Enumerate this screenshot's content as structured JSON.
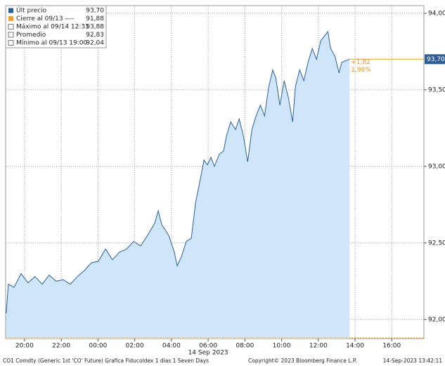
{
  "chart_data": {
    "type": "area",
    "x": [
      19.0,
      19.12,
      19.43,
      19.81,
      20.19,
      20.57,
      20.96,
      21.34,
      21.72,
      22.11,
      22.49,
      22.87,
      23.26,
      23.64,
      24.02,
      24.41,
      24.79,
      25.17,
      25.56,
      25.94,
      26.32,
      26.7,
      27.09,
      27.28,
      27.47,
      27.85,
      28.16,
      28.31,
      28.54,
      28.81,
      29.08,
      29.31,
      29.58,
      29.77,
      29.96,
      30.15,
      30.34,
      30.61,
      30.84,
      31.0,
      31.23,
      31.49,
      31.69,
      31.92,
      32.15,
      32.38,
      32.61,
      32.84,
      33.07,
      33.3,
      33.52,
      33.68,
      33.91,
      34.14,
      34.37,
      34.6,
      34.75,
      34.98,
      35.21,
      35.44,
      35.67,
      35.9,
      36.13,
      36.52,
      36.67,
      36.9,
      37.13,
      37.28,
      37.7
    ],
    "series": [
      {
        "color": "#2f5f96",
        "fill": "#cfe6fa",
        "values": [
          92.04,
          92.23,
          92.21,
          92.3,
          92.24,
          92.28,
          92.23,
          92.29,
          92.25,
          92.26,
          92.23,
          92.28,
          92.32,
          92.37,
          92.38,
          92.46,
          92.39,
          92.44,
          92.46,
          92.51,
          92.48,
          92.55,
          92.63,
          92.71,
          92.62,
          92.55,
          92.44,
          92.35,
          92.41,
          92.51,
          92.53,
          92.76,
          92.92,
          93.04,
          93.01,
          93.06,
          93.0,
          93.08,
          93.1,
          93.2,
          93.29,
          93.24,
          93.31,
          93.2,
          93.03,
          93.24,
          93.33,
          93.4,
          93.33,
          93.52,
          93.63,
          93.58,
          93.4,
          93.56,
          93.45,
          93.29,
          93.52,
          93.63,
          93.56,
          93.68,
          93.77,
          93.7,
          93.82,
          93.88,
          93.77,
          93.72,
          93.61,
          93.68,
          93.7
        ]
      }
    ],
    "xlim": [
      18.97,
      41.75
    ],
    "xticks": [
      {
        "value": 20,
        "label": "20:00"
      },
      {
        "value": 22,
        "label": "22:00"
      },
      {
        "value": 24,
        "label": "00:00"
      },
      {
        "value": 26,
        "label": "02:00"
      },
      {
        "value": 28,
        "label": "04:00"
      },
      {
        "value": 30,
        "label": "06:00"
      },
      {
        "value": 32,
        "label": "08:00"
      },
      {
        "value": 34,
        "label": "10:00"
      },
      {
        "value": 36,
        "label": "12:00"
      },
      {
        "value": 38,
        "label": "14:00"
      },
      {
        "value": 40,
        "label": "16:00"
      }
    ],
    "x_date_label": "14 Sep 2023",
    "ylim": [
      91.875,
      94.05
    ],
    "yticks": [
      {
        "value": 92,
        "label": "92,00"
      },
      {
        "value": 92.5,
        "label": "92,50"
      },
      {
        "value": 93,
        "label": "93,00"
      },
      {
        "value": 93.5,
        "label": "93,50"
      },
      {
        "value": 94,
        "label": "94,00"
      }
    ],
    "grid": true,
    "legend": {
      "names": [
        "Últ precio",
        "Cierre al 09/13 ----",
        "Máximo al 09/14 12:31",
        "Promedio",
        "Mínimo al 09/13 19:00"
      ],
      "values": [
        93.7,
        91.88,
        93.88,
        92.83,
        92.04
      ],
      "value_labels": [
        "93,70",
        "91,88",
        "93,88",
        "92,83",
        "92,04"
      ],
      "colors": [
        "#2f5f96",
        "#f0a030",
        "#777777",
        "#777777",
        "#777777"
      ]
    },
    "annotations": [
      "+1,82",
      "1,98%"
    ],
    "footer": [
      "CO1 Comdty (Generic 1st 'CO' Future) Grafica Fiducoldex 1 días 1 Seven Days",
      "Copyright© 2023 Bloomberg Finance L.P.",
      "14-Sep-2023 13:42:11"
    ]
  }
}
